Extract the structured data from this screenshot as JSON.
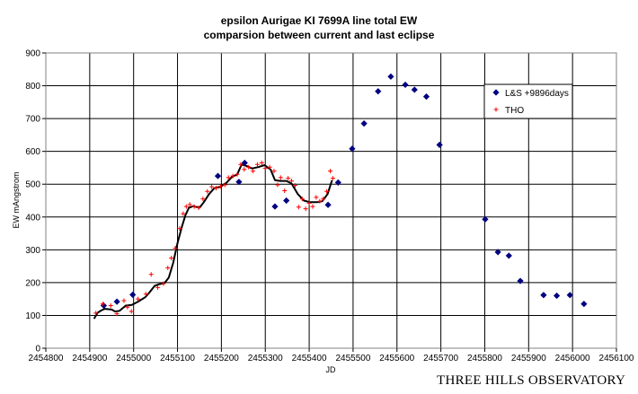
{
  "chart_data": {
    "type": "scatter",
    "title": "epsilon Aurigae   KI 7699A line total EW",
    "subtitle": "comparsion between current and last eclipse",
    "xlabel": "JD",
    "ylabel": "EW mAngstrom",
    "xlim": [
      2454800,
      2456100
    ],
    "ylim": [
      0,
      900
    ],
    "x_ticks": [
      2454800,
      2454900,
      2455000,
      2455100,
      2455200,
      2455300,
      2455400,
      2455500,
      2455600,
      2455700,
      2455800,
      2455900,
      2456000,
      2456100
    ],
    "y_ticks": [
      0,
      100,
      200,
      300,
      400,
      500,
      600,
      700,
      800,
      900
    ],
    "grid": true,
    "legend_position": "right",
    "series": [
      {
        "name": "L&S +9896days",
        "marker": "diamond",
        "color": "#000080",
        "points": [
          [
            2454932,
            130
          ],
          [
            2454962,
            142
          ],
          [
            2454998,
            163
          ],
          [
            2455192,
            525
          ],
          [
            2455240,
            507
          ],
          [
            2455253,
            565
          ],
          [
            2455322,
            432
          ],
          [
            2455348,
            450
          ],
          [
            2455443,
            437
          ],
          [
            2455466,
            505
          ],
          [
            2455498,
            608
          ],
          [
            2455525,
            685
          ],
          [
            2455557,
            783
          ],
          [
            2455586,
            828
          ],
          [
            2455619,
            803
          ],
          [
            2455640,
            788
          ],
          [
            2455667,
            767
          ],
          [
            2455697,
            620
          ],
          [
            2455801,
            393
          ],
          [
            2455830,
            293
          ],
          [
            2455855,
            282
          ],
          [
            2455881,
            205
          ],
          [
            2455934,
            162
          ],
          [
            2455964,
            160
          ],
          [
            2455994,
            162
          ],
          [
            2456026,
            135
          ]
        ]
      },
      {
        "name": "THO",
        "marker": "plus",
        "color": "#ff0000",
        "points": [
          [
            2454914,
            107
          ],
          [
            2454930,
            135
          ],
          [
            2454948,
            130
          ],
          [
            2454962,
            105
          ],
          [
            2454978,
            145
          ],
          [
            2454986,
            125
          ],
          [
            2454995,
            112
          ],
          [
            2455010,
            150
          ],
          [
            2455028,
            165
          ],
          [
            2455040,
            225
          ],
          [
            2455055,
            185
          ],
          [
            2455068,
            197
          ],
          [
            2455078,
            245
          ],
          [
            2455086,
            275
          ],
          [
            2455095,
            305
          ],
          [
            2455105,
            365
          ],
          [
            2455113,
            410
          ],
          [
            2455120,
            432
          ],
          [
            2455128,
            438
          ],
          [
            2455138,
            432
          ],
          [
            2455148,
            428
          ],
          [
            2455158,
            455
          ],
          [
            2455168,
            478
          ],
          [
            2455178,
            492
          ],
          [
            2455188,
            488
          ],
          [
            2455198,
            493
          ],
          [
            2455208,
            498
          ],
          [
            2455216,
            520
          ],
          [
            2455226,
            525
          ],
          [
            2455236,
            530
          ],
          [
            2455244,
            560
          ],
          [
            2455252,
            545
          ],
          [
            2455262,
            552
          ],
          [
            2455272,
            540
          ],
          [
            2455282,
            560
          ],
          [
            2455292,
            565
          ],
          [
            2455300,
            548
          ],
          [
            2455310,
            552
          ],
          [
            2455320,
            540
          ],
          [
            2455328,
            498
          ],
          [
            2455335,
            520
          ],
          [
            2455344,
            480
          ],
          [
            2455352,
            518
          ],
          [
            2455360,
            510
          ],
          [
            2455368,
            496
          ],
          [
            2455376,
            430
          ],
          [
            2455384,
            455
          ],
          [
            2455392,
            425
          ],
          [
            2455400,
            442
          ],
          [
            2455408,
            432
          ],
          [
            2455416,
            460
          ],
          [
            2455424,
            448
          ],
          [
            2455432,
            455
          ],
          [
            2455440,
            478
          ],
          [
            2455448,
            540
          ],
          [
            2455454,
            518
          ]
        ]
      }
    ],
    "lines": [
      {
        "color": "#000000",
        "points": [
          [
            2454910,
            90
          ],
          [
            2454918,
            108
          ],
          [
            2454926,
            115
          ],
          [
            2454934,
            120
          ],
          [
            2454950,
            118
          ],
          [
            2454958,
            112
          ],
          [
            2454968,
            114
          ],
          [
            2454982,
            130
          ],
          [
            2454996,
            132
          ],
          [
            2455010,
            142
          ],
          [
            2455026,
            155
          ],
          [
            2455036,
            170
          ],
          [
            2455048,
            190
          ],
          [
            2455058,
            195
          ],
          [
            2455070,
            198
          ],
          [
            2455080,
            215
          ],
          [
            2455090,
            260
          ],
          [
            2455100,
            320
          ],
          [
            2455110,
            370
          ],
          [
            2455118,
            405
          ],
          [
            2455126,
            428
          ],
          [
            2455136,
            433
          ],
          [
            2455150,
            428
          ],
          [
            2455160,
            445
          ],
          [
            2455172,
            470
          ],
          [
            2455184,
            488
          ],
          [
            2455198,
            492
          ],
          [
            2455212,
            505
          ],
          [
            2455224,
            522
          ],
          [
            2455236,
            530
          ],
          [
            2455246,
            560
          ],
          [
            2455258,
            555
          ],
          [
            2455270,
            548
          ],
          [
            2455284,
            552
          ],
          [
            2455298,
            558
          ],
          [
            2455312,
            545
          ],
          [
            2455322,
            512
          ],
          [
            2455334,
            510
          ],
          [
            2455348,
            510
          ],
          [
            2455360,
            502
          ],
          [
            2455374,
            470
          ],
          [
            2455388,
            450
          ],
          [
            2455402,
            445
          ],
          [
            2455418,
            445
          ],
          [
            2455430,
            448
          ],
          [
            2455442,
            470
          ],
          [
            2455452,
            512
          ]
        ]
      }
    ]
  },
  "watermark": "THREE HILLS OBSERVATORY"
}
